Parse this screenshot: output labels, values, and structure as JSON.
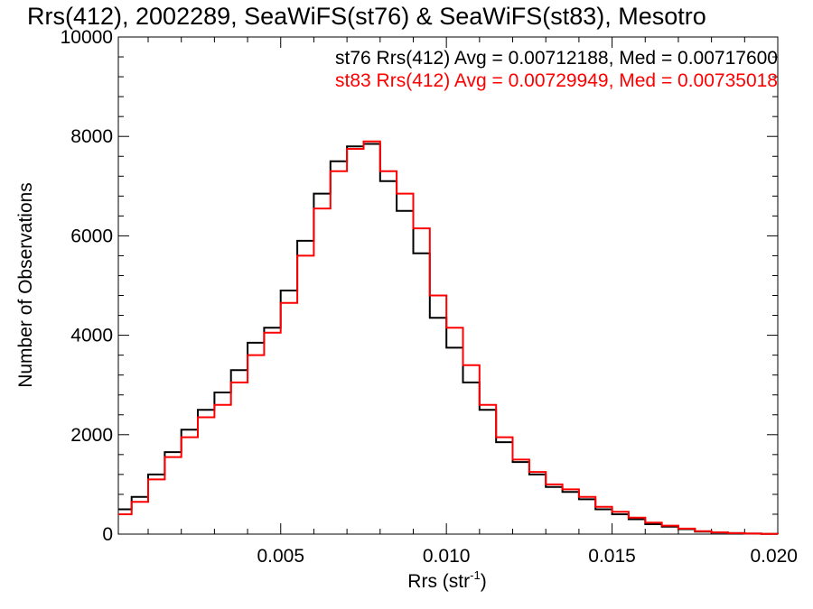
{
  "chart_data": {
    "type": "line",
    "step": true,
    "title": "Rrs(412), 2002289, SeaWiFS(st76) & SeaWiFS(st83), Mesotro",
    "xlabel_main": "Rrs (str",
    "xlabel_sup": "-1",
    "xlabel_close": ")",
    "ylabel": "Number of Observations",
    "xlim": [
      0.0001,
      0.02
    ],
    "ylim": [
      0,
      10000
    ],
    "x_ticks": [
      0.005,
      0.01,
      0.015,
      0.02
    ],
    "x_tick_labels": [
      "0.005",
      "0.010",
      "0.015",
      "0.020"
    ],
    "y_ticks": [
      0,
      2000,
      4000,
      6000,
      8000,
      10000
    ],
    "y_tick_labels": [
      "0",
      "2000",
      "4000",
      "6000",
      "8000",
      "10000"
    ],
    "grid": false,
    "legend_placement": "top-right",
    "series": [
      {
        "name": "st76",
        "color": "#000000",
        "annotation": "st76 Rrs(412) Avg = 0.00712188, Med = 0.00717600",
        "x": [
          0.0001,
          0.0005,
          0.001,
          0.0015,
          0.002,
          0.0025,
          0.003,
          0.0035,
          0.004,
          0.0045,
          0.005,
          0.0055,
          0.006,
          0.0065,
          0.007,
          0.0075,
          0.008,
          0.0085,
          0.009,
          0.0095,
          0.01,
          0.0105,
          0.011,
          0.0115,
          0.012,
          0.0125,
          0.013,
          0.0135,
          0.014,
          0.0145,
          0.015,
          0.0155,
          0.016,
          0.0165,
          0.017,
          0.0175,
          0.018,
          0.0185,
          0.019,
          0.0195,
          0.02
        ],
        "y": [
          500,
          750,
          1200,
          1650,
          2100,
          2500,
          2850,
          3300,
          3850,
          4150,
          4900,
          5900,
          6850,
          7500,
          7800,
          7850,
          7100,
          6500,
          5650,
          4350,
          3750,
          3050,
          2500,
          1850,
          1450,
          1200,
          950,
          850,
          700,
          500,
          400,
          300,
          200,
          150,
          100,
          50,
          30,
          20,
          10,
          5,
          0
        ]
      },
      {
        "name": "st83",
        "color": "#ff0000",
        "annotation": "st83 Rrs(412) Avg = 0.00729949, Med = 0.00735018",
        "x": [
          0.0001,
          0.0005,
          0.001,
          0.0015,
          0.002,
          0.0025,
          0.003,
          0.0035,
          0.004,
          0.0045,
          0.005,
          0.0055,
          0.006,
          0.0065,
          0.007,
          0.0075,
          0.008,
          0.0085,
          0.009,
          0.0095,
          0.01,
          0.0105,
          0.011,
          0.0115,
          0.012,
          0.0125,
          0.013,
          0.0135,
          0.014,
          0.0145,
          0.015,
          0.0155,
          0.016,
          0.0165,
          0.017,
          0.0175,
          0.018,
          0.0185,
          0.019,
          0.0195,
          0.02
        ],
        "y": [
          400,
          650,
          1100,
          1550,
          1950,
          2350,
          2600,
          3050,
          3600,
          4050,
          4650,
          5600,
          6550,
          7300,
          7750,
          7900,
          7300,
          6850,
          6150,
          4800,
          4150,
          3400,
          2600,
          1950,
          1500,
          1250,
          1000,
          900,
          750,
          550,
          450,
          330,
          230,
          170,
          110,
          60,
          35,
          20,
          10,
          5,
          0
        ]
      }
    ]
  }
}
